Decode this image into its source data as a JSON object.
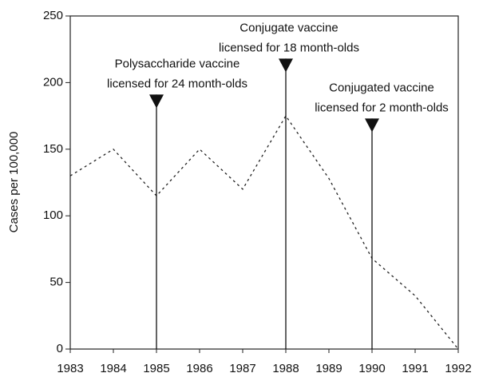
{
  "chart_data": {
    "type": "line",
    "ylabel": "Cases per 100,000",
    "x": [
      1983,
      1984,
      1985,
      1986,
      1987,
      1988,
      1989,
      1990,
      1991,
      1992
    ],
    "series": [
      {
        "color": "#222222",
        "values": [
          130,
          150,
          115,
          150,
          120,
          175,
          128,
          68,
          40,
          0
        ]
      }
    ],
    "xlim": [
      1983,
      1992
    ],
    "xticks": [
      1983,
      1984,
      1985,
      1986,
      1987,
      1988,
      1989,
      1990,
      1991,
      1992
    ],
    "ylim": [
      0,
      250
    ],
    "yticks": [
      0,
      50,
      100,
      150,
      200,
      250
    ],
    "grid": false,
    "annotations": [
      {
        "lines": [
          "Polysaccharide vaccine",
          "licensed for 24 month-olds"
        ],
        "x": 1985,
        "y": 191
      },
      {
        "lines": [
          "Conjugate vaccine",
          "licensed for 18 month-olds"
        ],
        "x": 1988,
        "y": 218
      },
      {
        "lines": [
          "Conjugated vaccine",
          "licensed for 2 month-olds"
        ],
        "x": 1990,
        "y": 173
      }
    ]
  }
}
